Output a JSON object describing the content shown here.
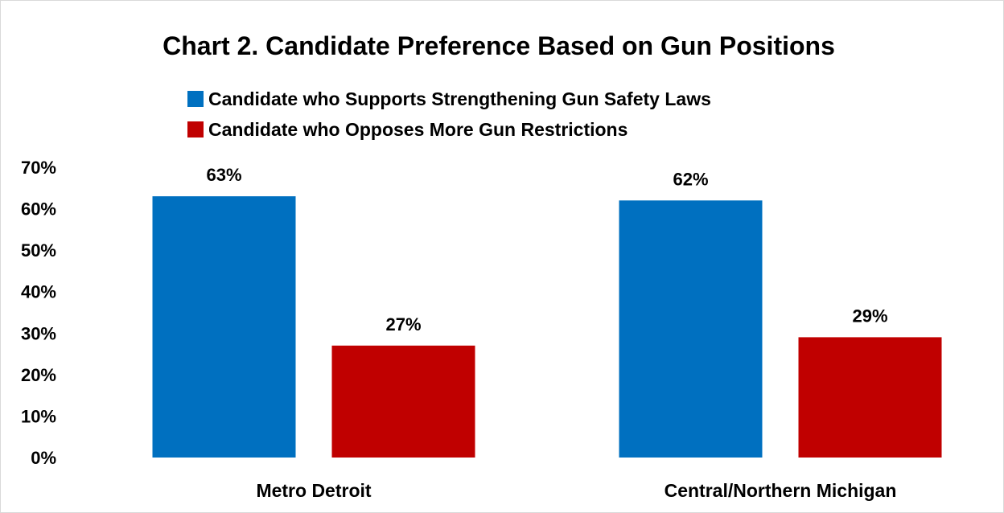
{
  "chart_data": {
    "type": "bar",
    "title": "Chart 2. Candidate Preference Based on Gun Positions",
    "xlabel": "",
    "ylabel": "",
    "categories": [
      "Metro Detroit",
      "Central/Northern Michigan"
    ],
    "series": [
      {
        "name": "Candidate who Supports Strengthening Gun Safety Laws",
        "color": "#0070C0",
        "values": [
          63,
          62
        ],
        "labels": [
          "63%",
          "62%"
        ]
      },
      {
        "name": "Candidate who Opposes More Gun Restrictions",
        "color": "#C00000",
        "values": [
          27,
          29
        ],
        "labels": [
          "27%",
          "29%"
        ]
      }
    ],
    "ylim": [
      0,
      70
    ],
    "yticks": [
      0,
      10,
      20,
      30,
      40,
      50,
      60,
      70
    ],
    "ytick_labels": [
      "0%",
      "10%",
      "20%",
      "30%",
      "40%",
      "50%",
      "60%",
      "70%"
    ],
    "grid": false,
    "legend_position": "top"
  }
}
